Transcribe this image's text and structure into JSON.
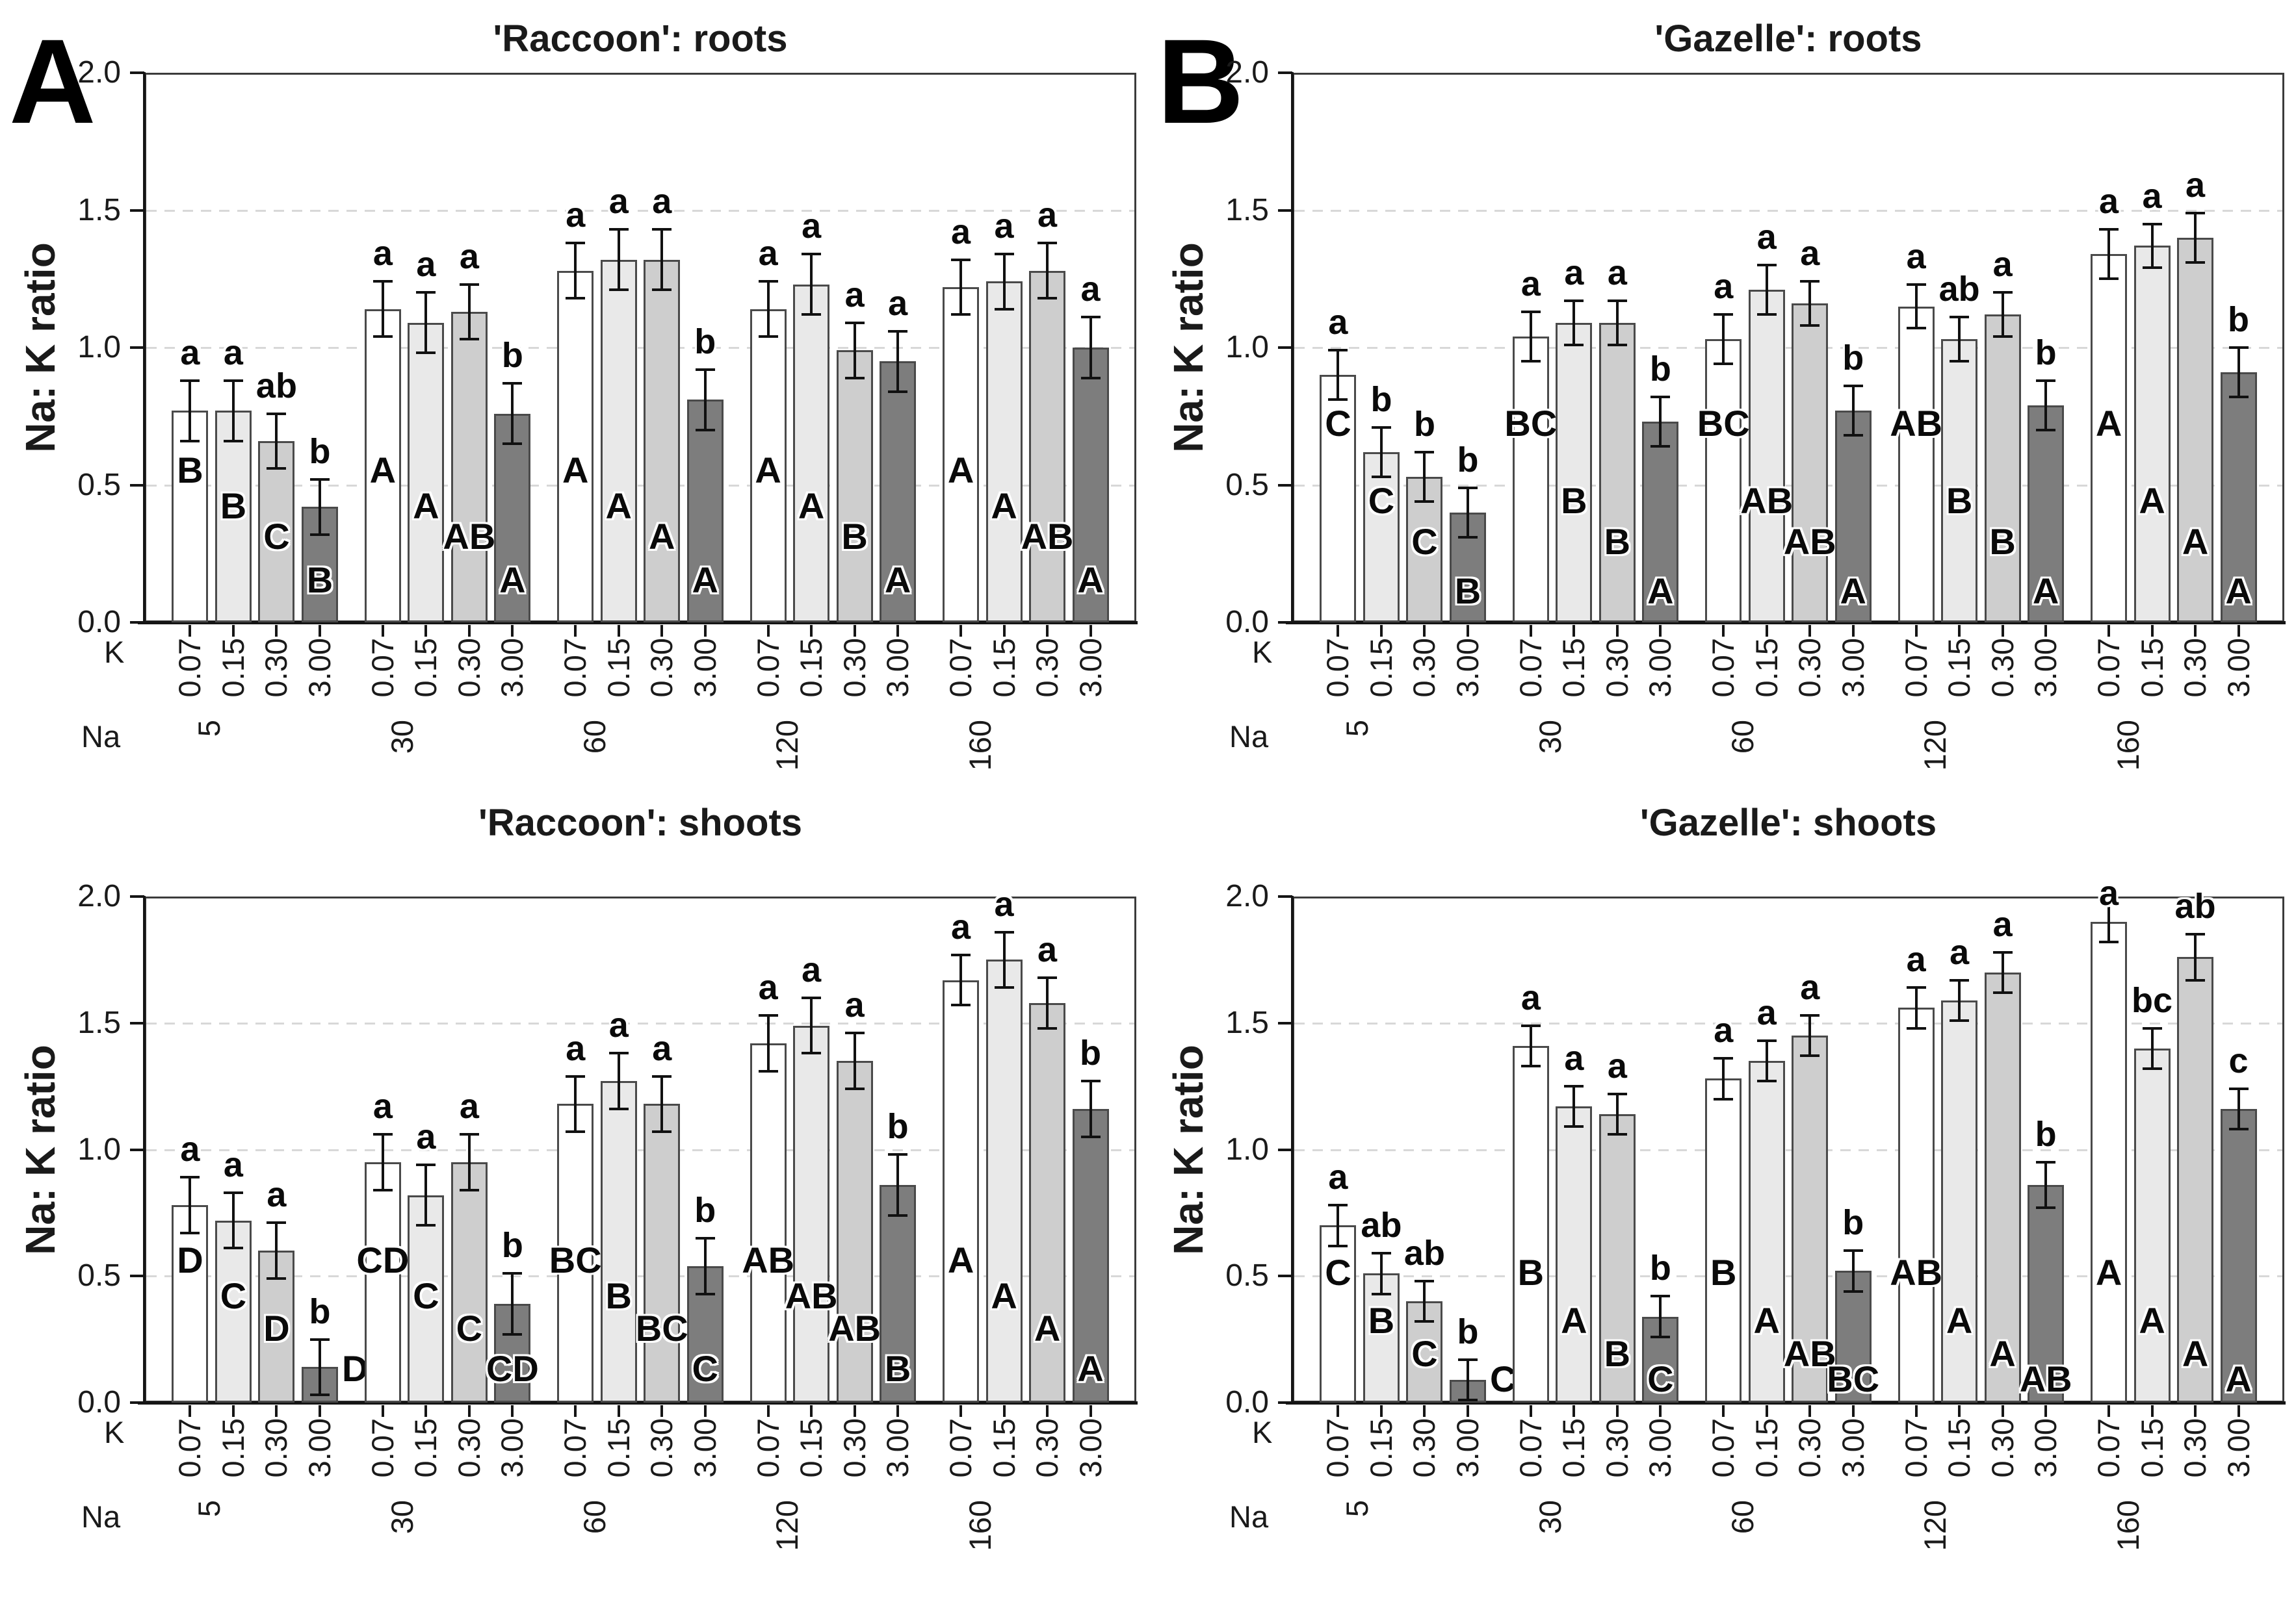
{
  "figure": {
    "ylabel": "Na: K ratio",
    "k_axis_label": "K",
    "na_axis_label": "Na",
    "k_levels": [
      "0.07",
      "0.15",
      "0.30",
      "3.00"
    ],
    "na_levels": [
      "5",
      "30",
      "60",
      "120",
      "160"
    ],
    "ytick_labels": [
      "0.0",
      "0.5",
      "1.0",
      "1.5",
      "2.0"
    ],
    "panel_labels": [
      "A",
      "B"
    ],
    "bar_fill_colors": [
      "#ffffff",
      "#e9e9e9",
      "#cecece",
      "#7d7d7d"
    ],
    "bar_border_color": "#4a4a4a",
    "error_bar_color": "#111111",
    "gridline_color": "#d8d8d8"
  },
  "chart_data": [
    {
      "type": "bar",
      "panel_label": "A",
      "title": "'Raccoon': roots",
      "ylabel": "Na: K ratio",
      "ylim": [
        0.0,
        2.0
      ],
      "yticks": [
        "0.0",
        "0.5",
        "1.0",
        "1.5",
        "2.0"
      ],
      "grid_y": [
        0.5,
        1.0,
        1.5
      ],
      "x_axis": {
        "sub_label": "K",
        "group_label": "Na",
        "sub_levels": [
          "0.07",
          "0.15",
          "0.30",
          "3.00"
        ],
        "group_levels": [
          "5",
          "30",
          "60",
          "120",
          "160"
        ]
      },
      "inside_letter_y": [
        0.56,
        0.43,
        0.32,
        0.16
      ],
      "outside_letter_bars": [],
      "groups": [
        {
          "na": "5",
          "bars": [
            {
              "k": "0.07",
              "value": 0.77,
              "err": 0.11,
              "letter_above": "a",
              "letter_inside": "B"
            },
            {
              "k": "0.15",
              "value": 0.77,
              "err": 0.11,
              "letter_above": "a",
              "letter_inside": "B"
            },
            {
              "k": "0.30",
              "value": 0.66,
              "err": 0.1,
              "letter_above": "ab",
              "letter_inside": "C"
            },
            {
              "k": "3.00",
              "value": 0.42,
              "err": 0.1,
              "letter_above": "b",
              "letter_inside": "B"
            }
          ]
        },
        {
          "na": "30",
          "bars": [
            {
              "k": "0.07",
              "value": 1.14,
              "err": 0.1,
              "letter_above": "a",
              "letter_inside": "A"
            },
            {
              "k": "0.15",
              "value": 1.09,
              "err": 0.11,
              "letter_above": "a",
              "letter_inside": "A"
            },
            {
              "k": "0.30",
              "value": 1.13,
              "err": 0.1,
              "letter_above": "a",
              "letter_inside": "AB"
            },
            {
              "k": "3.00",
              "value": 0.76,
              "err": 0.11,
              "letter_above": "b",
              "letter_inside": "A"
            }
          ]
        },
        {
          "na": "60",
          "bars": [
            {
              "k": "0.07",
              "value": 1.28,
              "err": 0.1,
              "letter_above": "a",
              "letter_inside": "A"
            },
            {
              "k": "0.15",
              "value": 1.32,
              "err": 0.11,
              "letter_above": "a",
              "letter_inside": "A"
            },
            {
              "k": "0.30",
              "value": 1.32,
              "err": 0.11,
              "letter_above": "a",
              "letter_inside": "A"
            },
            {
              "k": "3.00",
              "value": 0.81,
              "err": 0.11,
              "letter_above": "b",
              "letter_inside": "A"
            }
          ]
        },
        {
          "na": "120",
          "bars": [
            {
              "k": "0.07",
              "value": 1.14,
              "err": 0.1,
              "letter_above": "a",
              "letter_inside": "A"
            },
            {
              "k": "0.15",
              "value": 1.23,
              "err": 0.11,
              "letter_above": "a",
              "letter_inside": "A"
            },
            {
              "k": "0.30",
              "value": 0.99,
              "err": 0.1,
              "letter_above": "a",
              "letter_inside": "B"
            },
            {
              "k": "3.00",
              "value": 0.95,
              "err": 0.11,
              "letter_above": "a",
              "letter_inside": "A"
            }
          ]
        },
        {
          "na": "160",
          "bars": [
            {
              "k": "0.07",
              "value": 1.22,
              "err": 0.1,
              "letter_above": "a",
              "letter_inside": "A"
            },
            {
              "k": "0.15",
              "value": 1.24,
              "err": 0.1,
              "letter_above": "a",
              "letter_inside": "A"
            },
            {
              "k": "0.30",
              "value": 1.28,
              "err": 0.1,
              "letter_above": "a",
              "letter_inside": "AB"
            },
            {
              "k": "3.00",
              "value": 1.0,
              "err": 0.11,
              "letter_above": "a",
              "letter_inside": "A"
            }
          ]
        }
      ]
    },
    {
      "type": "bar",
      "panel_label": "B",
      "title": "'Gazelle': roots",
      "ylabel": "Na: K ratio",
      "ylim": [
        0.0,
        2.0
      ],
      "yticks": [
        "0.0",
        "0.5",
        "1.0",
        "1.5",
        "2.0"
      ],
      "grid_y": [
        0.5,
        1.0,
        1.5
      ],
      "x_axis": {
        "sub_label": "K",
        "group_label": "Na",
        "sub_levels": [
          "0.07",
          "0.15",
          "0.30",
          "3.00"
        ],
        "group_levels": [
          "5",
          "30",
          "60",
          "120",
          "160"
        ]
      },
      "inside_letter_y": [
        0.73,
        0.45,
        0.3,
        0.12
      ],
      "outside_letter_bars": [],
      "groups": [
        {
          "na": "5",
          "bars": [
            {
              "k": "0.07",
              "value": 0.9,
              "err": 0.09,
              "letter_above": "a",
              "letter_inside": "C"
            },
            {
              "k": "0.15",
              "value": 0.62,
              "err": 0.09,
              "letter_above": "b",
              "letter_inside": "C"
            },
            {
              "k": "0.30",
              "value": 0.53,
              "err": 0.09,
              "letter_above": "b",
              "letter_inside": "C"
            },
            {
              "k": "3.00",
              "value": 0.4,
              "err": 0.09,
              "letter_above": "b",
              "letter_inside": "B"
            }
          ]
        },
        {
          "na": "30",
          "bars": [
            {
              "k": "0.07",
              "value": 1.04,
              "err": 0.09,
              "letter_above": "a",
              "letter_inside": "BC"
            },
            {
              "k": "0.15",
              "value": 1.09,
              "err": 0.08,
              "letter_above": "a",
              "letter_inside": "B"
            },
            {
              "k": "0.30",
              "value": 1.09,
              "err": 0.08,
              "letter_above": "a",
              "letter_inside": "B"
            },
            {
              "k": "3.00",
              "value": 0.73,
              "err": 0.09,
              "letter_above": "b",
              "letter_inside": "A"
            }
          ]
        },
        {
          "na": "60",
          "bars": [
            {
              "k": "0.07",
              "value": 1.03,
              "err": 0.09,
              "letter_above": "a",
              "letter_inside": "BC"
            },
            {
              "k": "0.15",
              "value": 1.21,
              "err": 0.09,
              "letter_above": "a",
              "letter_inside": "AB"
            },
            {
              "k": "0.30",
              "value": 1.16,
              "err": 0.08,
              "letter_above": "a",
              "letter_inside": "AB"
            },
            {
              "k": "3.00",
              "value": 0.77,
              "err": 0.09,
              "letter_above": "b",
              "letter_inside": "A"
            }
          ]
        },
        {
          "na": "120",
          "bars": [
            {
              "k": "0.07",
              "value": 1.15,
              "err": 0.08,
              "letter_above": "a",
              "letter_inside": "AB"
            },
            {
              "k": "0.15",
              "value": 1.03,
              "err": 0.08,
              "letter_above": "ab",
              "letter_inside": "B"
            },
            {
              "k": "0.30",
              "value": 1.12,
              "err": 0.08,
              "letter_above": "a",
              "letter_inside": "B"
            },
            {
              "k": "3.00",
              "value": 0.79,
              "err": 0.09,
              "letter_above": "b",
              "letter_inside": "A"
            }
          ]
        },
        {
          "na": "160",
          "bars": [
            {
              "k": "0.07",
              "value": 1.34,
              "err": 0.09,
              "letter_above": "a",
              "letter_inside": "A"
            },
            {
              "k": "0.15",
              "value": 1.37,
              "err": 0.08,
              "letter_above": "a",
              "letter_inside": "A"
            },
            {
              "k": "0.30",
              "value": 1.4,
              "err": 0.09,
              "letter_above": "a",
              "letter_inside": "A"
            },
            {
              "k": "3.00",
              "value": 0.91,
              "err": 0.09,
              "letter_above": "b",
              "letter_inside": "A"
            }
          ]
        }
      ]
    },
    {
      "type": "bar",
      "panel_label": "",
      "title": "'Raccoon': shoots",
      "ylabel": "Na: K ratio",
      "ylim": [
        0.0,
        2.0
      ],
      "yticks": [
        "0.0",
        "0.5",
        "1.0",
        "1.5",
        "2.0"
      ],
      "grid_y": [
        0.5,
        1.0,
        1.5
      ],
      "x_axis": {
        "sub_label": "K",
        "group_label": "Na",
        "sub_levels": [
          "0.07",
          "0.15",
          "0.30",
          "3.00"
        ],
        "group_levels": [
          "5",
          "30",
          "60",
          "120",
          "160"
        ]
      },
      "inside_letter_y": [
        0.57,
        0.43,
        0.3,
        0.14
      ],
      "outside_letter_bars": [
        [
          0,
          3
        ]
      ],
      "groups": [
        {
          "na": "5",
          "bars": [
            {
              "k": "0.07",
              "value": 0.78,
              "err": 0.11,
              "letter_above": "a",
              "letter_inside": "D"
            },
            {
              "k": "0.15",
              "value": 0.72,
              "err": 0.11,
              "letter_above": "a",
              "letter_inside": "C"
            },
            {
              "k": "0.30",
              "value": 0.6,
              "err": 0.11,
              "letter_above": "a",
              "letter_inside": "D"
            },
            {
              "k": "3.00",
              "value": 0.14,
              "err": 0.11,
              "letter_above": "b",
              "letter_inside": "D"
            }
          ]
        },
        {
          "na": "30",
          "bars": [
            {
              "k": "0.07",
              "value": 0.95,
              "err": 0.11,
              "letter_above": "a",
              "letter_inside": "CD"
            },
            {
              "k": "0.15",
              "value": 0.82,
              "err": 0.12,
              "letter_above": "a",
              "letter_inside": "C"
            },
            {
              "k": "0.30",
              "value": 0.95,
              "err": 0.11,
              "letter_above": "a",
              "letter_inside": "C"
            },
            {
              "k": "3.00",
              "value": 0.39,
              "err": 0.12,
              "letter_above": "b",
              "letter_inside": "CD"
            }
          ]
        },
        {
          "na": "60",
          "bars": [
            {
              "k": "0.07",
              "value": 1.18,
              "err": 0.11,
              "letter_above": "a",
              "letter_inside": "BC"
            },
            {
              "k": "0.15",
              "value": 1.27,
              "err": 0.11,
              "letter_above": "a",
              "letter_inside": "B"
            },
            {
              "k": "0.30",
              "value": 1.18,
              "err": 0.11,
              "letter_above": "a",
              "letter_inside": "BC"
            },
            {
              "k": "3.00",
              "value": 0.54,
              "err": 0.11,
              "letter_above": "b",
              "letter_inside": "C"
            }
          ]
        },
        {
          "na": "120",
          "bars": [
            {
              "k": "0.07",
              "value": 1.42,
              "err": 0.11,
              "letter_above": "a",
              "letter_inside": "AB"
            },
            {
              "k": "0.15",
              "value": 1.49,
              "err": 0.11,
              "letter_above": "a",
              "letter_inside": "AB"
            },
            {
              "k": "0.30",
              "value": 1.35,
              "err": 0.11,
              "letter_above": "a",
              "letter_inside": "AB"
            },
            {
              "k": "3.00",
              "value": 0.86,
              "err": 0.12,
              "letter_above": "b",
              "letter_inside": "B"
            }
          ]
        },
        {
          "na": "160",
          "bars": [
            {
              "k": "0.07",
              "value": 1.67,
              "err": 0.1,
              "letter_above": "a",
              "letter_inside": "A"
            },
            {
              "k": "0.15",
              "value": 1.75,
              "err": 0.11,
              "letter_above": "a",
              "letter_inside": "A"
            },
            {
              "k": "0.30",
              "value": 1.58,
              "err": 0.1,
              "letter_above": "a",
              "letter_inside": "A"
            },
            {
              "k": "3.00",
              "value": 1.16,
              "err": 0.11,
              "letter_above": "b",
              "letter_inside": "A"
            }
          ]
        }
      ]
    },
    {
      "type": "bar",
      "panel_label": "",
      "title": "'Gazelle': shoots",
      "ylabel": "Na: K ratio",
      "ylim": [
        0.0,
        2.0
      ],
      "yticks": [
        "0.0",
        "0.5",
        "1.0",
        "1.5",
        "2.0"
      ],
      "grid_y": [
        0.5,
        1.0,
        1.5
      ],
      "x_axis": {
        "sub_label": "K",
        "group_label": "Na",
        "sub_levels": [
          "0.07",
          "0.15",
          "0.30",
          "3.00"
        ],
        "group_levels": [
          "5",
          "30",
          "60",
          "120",
          "160"
        ]
      },
      "inside_letter_y": [
        0.52,
        0.33,
        0.2,
        0.1
      ],
      "outside_letter_bars": [
        [
          0,
          3
        ]
      ],
      "groups": [
        {
          "na": "5",
          "bars": [
            {
              "k": "0.07",
              "value": 0.7,
              "err": 0.08,
              "letter_above": "a",
              "letter_inside": "C"
            },
            {
              "k": "0.15",
              "value": 0.51,
              "err": 0.08,
              "letter_above": "ab",
              "letter_inside": "B"
            },
            {
              "k": "0.30",
              "value": 0.4,
              "err": 0.08,
              "letter_above": "ab",
              "letter_inside": "C"
            },
            {
              "k": "3.00",
              "value": 0.09,
              "err": 0.08,
              "letter_above": "b",
              "letter_inside": "C"
            }
          ]
        },
        {
          "na": "30",
          "bars": [
            {
              "k": "0.07",
              "value": 1.41,
              "err": 0.08,
              "letter_above": "a",
              "letter_inside": "B"
            },
            {
              "k": "0.15",
              "value": 1.17,
              "err": 0.08,
              "letter_above": "a",
              "letter_inside": "A"
            },
            {
              "k": "0.30",
              "value": 1.14,
              "err": 0.08,
              "letter_above": "a",
              "letter_inside": "B"
            },
            {
              "k": "3.00",
              "value": 0.34,
              "err": 0.08,
              "letter_above": "b",
              "letter_inside": "C"
            }
          ]
        },
        {
          "na": "60",
          "bars": [
            {
              "k": "0.07",
              "value": 1.28,
              "err": 0.08,
              "letter_above": "a",
              "letter_inside": "B"
            },
            {
              "k": "0.15",
              "value": 1.35,
              "err": 0.08,
              "letter_above": "a",
              "letter_inside": "A"
            },
            {
              "k": "0.30",
              "value": 1.45,
              "err": 0.08,
              "letter_above": "a",
              "letter_inside": "AB"
            },
            {
              "k": "3.00",
              "value": 0.52,
              "err": 0.08,
              "letter_above": "b",
              "letter_inside": "BC"
            }
          ]
        },
        {
          "na": "120",
          "bars": [
            {
              "k": "0.07",
              "value": 1.56,
              "err": 0.08,
              "letter_above": "a",
              "letter_inside": "AB"
            },
            {
              "k": "0.15",
              "value": 1.59,
              "err": 0.08,
              "letter_above": "a",
              "letter_inside": "A"
            },
            {
              "k": "0.30",
              "value": 1.7,
              "err": 0.08,
              "letter_above": "a",
              "letter_inside": "A"
            },
            {
              "k": "3.00",
              "value": 0.86,
              "err": 0.09,
              "letter_above": "b",
              "letter_inside": "AB"
            }
          ]
        },
        {
          "na": "160",
          "bars": [
            {
              "k": "0.07",
              "value": 1.9,
              "err": 0.08,
              "letter_above": "a",
              "letter_inside": "A"
            },
            {
              "k": "0.15",
              "value": 1.4,
              "err": 0.08,
              "letter_above": "bc",
              "letter_inside": "A"
            },
            {
              "k": "0.30",
              "value": 1.76,
              "err": 0.09,
              "letter_above": "ab",
              "letter_inside": "A"
            },
            {
              "k": "3.00",
              "value": 1.16,
              "err": 0.08,
              "letter_above": "c",
              "letter_inside": "A"
            }
          ]
        }
      ]
    }
  ]
}
